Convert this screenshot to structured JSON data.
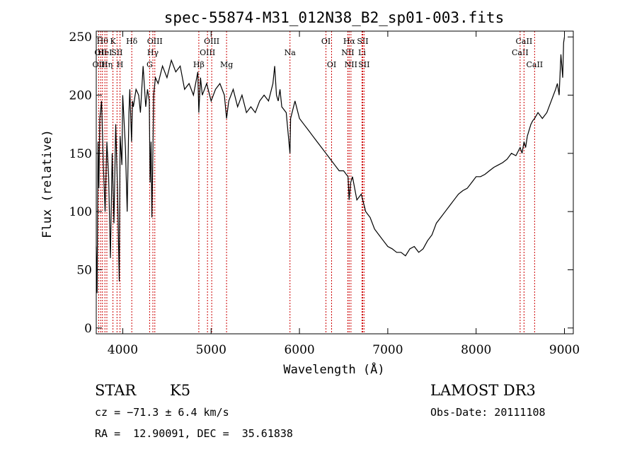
{
  "chart_data": {
    "type": "line",
    "title": "spec-55874-M31_012N38_B2_sp01-003.fits",
    "xlabel": "Wavelength (Å)",
    "ylabel": "Flux (relative)",
    "xlim": [
      3700,
      9100
    ],
    "ylim": [
      -5,
      255
    ],
    "xticks": [
      4000,
      5000,
      6000,
      7000,
      8000,
      9000
    ],
    "yticks": [
      0,
      50,
      100,
      150,
      200,
      250
    ],
    "series": [
      {
        "name": "flux",
        "x": [
          3700,
          3710,
          3720,
          3730,
          3740,
          3760,
          3780,
          3800,
          3820,
          3840,
          3860,
          3880,
          3900,
          3920,
          3940,
          3960,
          3970,
          3990,
          4000,
          4030,
          4050,
          4070,
          4080,
          4100,
          4110,
          4120,
          4150,
          4180,
          4200,
          4230,
          4260,
          4280,
          4300,
          4310,
          4320,
          4330,
          4340,
          4350,
          4370,
          4400,
          4450,
          4500,
          4550,
          4600,
          4650,
          4700,
          4750,
          4800,
          4850,
          4861,
          4880,
          4900,
          4950,
          5000,
          5050,
          5100,
          5150,
          5175,
          5200,
          5250,
          5300,
          5350,
          5400,
          5450,
          5500,
          5550,
          5600,
          5650,
          5700,
          5720,
          5740,
          5760,
          5780,
          5800,
          5850,
          5893,
          5900,
          5950,
          6000,
          6050,
          6100,
          6150,
          6200,
          6250,
          6300,
          6350,
          6400,
          6450,
          6500,
          6550,
          6563,
          6580,
          6600,
          6650,
          6700,
          6750,
          6800,
          6850,
          6900,
          6950,
          7000,
          7050,
          7100,
          7150,
          7200,
          7250,
          7300,
          7350,
          7400,
          7450,
          7500,
          7550,
          7600,
          7650,
          7700,
          7750,
          7800,
          7850,
          7900,
          7950,
          8000,
          8050,
          8100,
          8150,
          8200,
          8250,
          8300,
          8350,
          8400,
          8450,
          8498,
          8520,
          8542,
          8560,
          8580,
          8600,
          8620,
          8640,
          8662,
          8700,
          8750,
          8800,
          8850,
          8900,
          8920,
          8940,
          8960,
          8980,
          8990,
          9000
        ],
        "y": [
          70,
          30,
          160,
          120,
          180,
          195,
          140,
          100,
          160,
          130,
          60,
          150,
          90,
          175,
          120,
          40,
          165,
          140,
          200,
          155,
          100,
          185,
          205,
          160,
          195,
          190,
          205,
          200,
          185,
          225,
          190,
          205,
          195,
          125,
          160,
          95,
          145,
          200,
          215,
          210,
          225,
          215,
          230,
          220,
          225,
          205,
          210,
          200,
          220,
          185,
          215,
          200,
          210,
          195,
          205,
          210,
          200,
          180,
          195,
          205,
          190,
          200,
          185,
          190,
          185,
          195,
          200,
          195,
          210,
          225,
          200,
          195,
          205,
          190,
          185,
          150,
          180,
          195,
          180,
          175,
          170,
          165,
          160,
          155,
          150,
          145,
          140,
          135,
          135,
          130,
          110,
          125,
          130,
          110,
          115,
          100,
          95,
          85,
          80,
          75,
          70,
          68,
          65,
          65,
          62,
          68,
          70,
          65,
          68,
          75,
          80,
          90,
          95,
          100,
          105,
          110,
          115,
          118,
          120,
          125,
          130,
          130,
          132,
          135,
          138,
          140,
          142,
          145,
          150,
          148,
          155,
          150,
          160,
          155,
          165,
          170,
          175,
          178,
          180,
          185,
          180,
          185,
          195,
          205,
          210,
          200,
          235,
          215,
          245,
          250
        ]
      }
    ],
    "line_markers": [
      {
        "wave": 3727,
        "label": "OII",
        "row": 3
      },
      {
        "wave": 3750,
        "label": "OII",
        "row": 2
      },
      {
        "wave": 3770,
        "label": "Hθ",
        "row": 1
      },
      {
        "wave": 3798,
        "label": "HeI",
        "row": 2
      },
      {
        "wave": 3820,
        "label": "Hη",
        "row": 3
      },
      {
        "wave": 3889,
        "label": "K",
        "row": 1
      },
      {
        "wave": 3935,
        "label": "SII",
        "row": 2
      },
      {
        "wave": 3969,
        "label": "H",
        "row": 3
      },
      {
        "wave": 4102,
        "label": "Hδ",
        "row": 1
      },
      {
        "wave": 4304,
        "label": "G",
        "row": 3
      },
      {
        "wave": 4341,
        "label": "Hγ",
        "row": 2
      },
      {
        "wave": 4363,
        "label": "OIII",
        "row": 1
      },
      {
        "wave": 4861,
        "label": "Hβ",
        "row": 3
      },
      {
        "wave": 4959,
        "label": "OIII",
        "row": 2
      },
      {
        "wave": 5007,
        "label": "OIII",
        "row": 1
      },
      {
        "wave": 5175,
        "label": "Mg",
        "row": 3
      },
      {
        "wave": 5893,
        "label": "Na",
        "row": 2
      },
      {
        "wave": 6300,
        "label": "OI",
        "row": 1
      },
      {
        "wave": 6364,
        "label": "OI",
        "row": 3
      },
      {
        "wave": 6548,
        "label": "NII",
        "row": 2
      },
      {
        "wave": 6563,
        "label": "Hα",
        "row": 1
      },
      {
        "wave": 6583,
        "label": "NII",
        "row": 3
      },
      {
        "wave": 6708,
        "label": "Li",
        "row": 2
      },
      {
        "wave": 6716,
        "label": "SII",
        "row": 1
      },
      {
        "wave": 6731,
        "label": "SII",
        "row": 3
      },
      {
        "wave": 8498,
        "label": "CaII",
        "row": 2
      },
      {
        "wave": 8542,
        "label": "CaII",
        "row": 1
      },
      {
        "wave": 8662,
        "label": "CaII",
        "row": 3
      }
    ],
    "colors": {
      "spectrum": "#000000",
      "markers": "#cc0000",
      "axes": "#000000"
    }
  },
  "info": {
    "class_label": "STAR",
    "subclass": "K5",
    "redshift": "cz = −71.3 ± 6.4 km/s",
    "coords": "RA =  12.90091, DEC =  35.61838",
    "survey": "LAMOST DR3",
    "obs_date": "Obs-Date: 20111108"
  }
}
